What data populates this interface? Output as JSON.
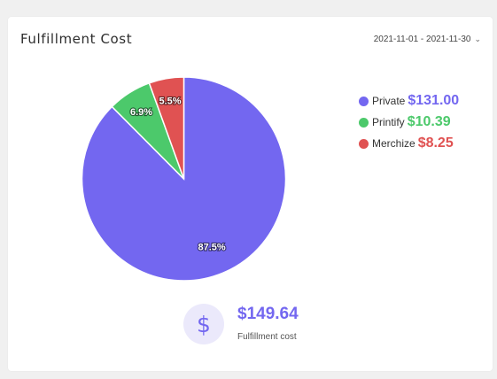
{
  "card": {
    "title": "Fulfillment Cost",
    "date_range": "2021-11-01 - 2021-11-30"
  },
  "chart_data": {
    "type": "pie",
    "series": [
      {
        "name": "Private",
        "value": 131.0,
        "amount": "$131.00",
        "percent_label": "87.5%",
        "color": "#7367f0"
      },
      {
        "name": "Printify",
        "value": 10.39,
        "amount": "$10.39",
        "percent_label": "6.9%",
        "color": "#4cc96b"
      },
      {
        "name": "Merchize",
        "value": 8.25,
        "amount": "$8.25",
        "percent_label": "5.5%",
        "color": "#e05252"
      }
    ],
    "legend_position": "right"
  },
  "summary": {
    "icon": "dollar-icon",
    "icon_glyph": "$",
    "total": "$149.64",
    "label": "Fulfillment cost"
  }
}
